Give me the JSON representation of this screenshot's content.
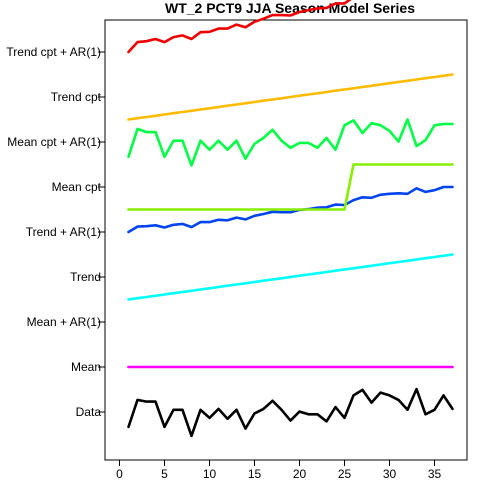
{
  "chart_data": {
    "type": "line",
    "title": "WT_2 PCT9 JJA Season Model Series",
    "xlabel": "",
    "ylabel": "",
    "xlim": [
      0,
      38
    ],
    "x_ticks": [
      0,
      5,
      10,
      15,
      20,
      25,
      30,
      35
    ],
    "y_categories": [
      "Data",
      "Mean",
      "Mean + AR(1)",
      "Trend",
      "Trend + AR(1)",
      "Mean cpt",
      "Mean cpt + AR(1)",
      "Trend cpt",
      "Trend cpt + AR(1)"
    ],
    "grid": false,
    "legend": "none",
    "x": [
      1,
      2,
      3,
      4,
      5,
      6,
      7,
      8,
      9,
      10,
      11,
      12,
      13,
      14,
      15,
      16,
      17,
      18,
      19,
      20,
      21,
      22,
      23,
      24,
      25,
      26,
      27,
      28,
      29,
      30,
      31,
      32,
      33,
      34,
      35,
      36,
      37
    ],
    "series": [
      {
        "name": "Data",
        "color": "#000000",
        "values": [
          -0.33,
          0.27,
          0.23,
          0.23,
          -0.33,
          0.05,
          0.05,
          -0.53,
          0.05,
          -0.13,
          0.07,
          -0.15,
          0.05,
          -0.37,
          -0.03,
          0.07,
          0.25,
          0.05,
          -0.19,
          0.01,
          -0.05,
          -0.05,
          -0.21,
          0.11,
          -0.13,
          0.37,
          0.49,
          0.21,
          0.43,
          0.37,
          0.27,
          0.05,
          0.51,
          -0.05,
          0.05,
          0.37,
          0.07
        ]
      },
      {
        "name": "Mean",
        "color": "#ff00ff",
        "values": [
          0,
          0,
          0,
          0,
          0,
          0,
          0,
          0,
          0,
          0,
          0,
          0,
          0,
          0,
          0,
          0,
          0,
          0,
          0,
          0,
          0,
          0,
          0,
          0,
          0,
          0,
          0,
          0,
          0,
          0,
          0,
          0,
          0,
          0,
          0,
          0,
          0
        ]
      },
      {
        "name": "Trend",
        "color": "#00ffff",
        "values": [
          -0.5,
          -0.4722,
          -0.4444,
          -0.4167,
          -0.3889,
          -0.3611,
          -0.3333,
          -0.3056,
          -0.2778,
          -0.25,
          -0.2222,
          -0.1944,
          -0.1667,
          -0.1389,
          -0.1111,
          -0.0833,
          -0.0556,
          -0.0278,
          0,
          0.0278,
          0.0556,
          0.0833,
          0.1111,
          0.1389,
          0.1667,
          0.1944,
          0.2222,
          0.25,
          0.2778,
          0.3056,
          0.3333,
          0.3611,
          0.3889,
          0.4167,
          0.4444,
          0.4722,
          0.5
        ]
      },
      {
        "name": "Trend + AR(1)",
        "color": "#0044ee",
        "values": [
          0.0,
          0.12,
          0.13,
          0.15,
          0.1,
          0.16,
          0.18,
          0.11,
          0.22,
          0.22,
          0.27,
          0.26,
          0.32,
          0.28,
          0.36,
          0.4,
          0.45,
          0.44,
          0.44,
          0.49,
          0.51,
          0.54,
          0.55,
          0.61,
          0.6,
          0.71,
          0.77,
          0.76,
          0.83,
          0.85,
          0.86,
          0.85,
          0.97,
          0.89,
          0.93,
          1.0,
          1.0
        ]
      },
      {
        "name": "Mean cpt",
        "color": "#88ee00",
        "values": [
          -0.5,
          -0.5,
          -0.5,
          -0.5,
          -0.5,
          -0.5,
          -0.5,
          -0.5,
          -0.5,
          -0.5,
          -0.5,
          -0.5,
          -0.5,
          -0.5,
          -0.5,
          -0.5,
          -0.5,
          -0.5,
          -0.5,
          -0.5,
          -0.5,
          -0.5,
          -0.5,
          -0.5,
          -0.5,
          0.5,
          0.5,
          0.5,
          0.5,
          0.5,
          0.5,
          0.5,
          0.5,
          0.5,
          0.5,
          0.5,
          0.5
        ]
      },
      {
        "name": "Mean cpt + AR(1)",
        "color": "#00ff44",
        "values": [
          -0.33,
          0.29,
          0.22,
          0.22,
          -0.33,
          0.03,
          0.03,
          -0.52,
          0.03,
          -0.17,
          0.03,
          -0.17,
          0.03,
          -0.37,
          -0.04,
          0.09,
          0.27,
          0.03,
          -0.13,
          -0.02,
          -0.02,
          -0.13,
          0.09,
          -0.17,
          0.37,
          0.48,
          0.2,
          0.42,
          0.37,
          0.25,
          0.01,
          0.5,
          -0.09,
          0.04,
          0.37,
          0.4,
          0.4
        ]
      },
      {
        "name": "Trend cpt",
        "color": "#ffbb00",
        "values": [
          -0.5,
          -0.4722,
          -0.4444,
          -0.4167,
          -0.3889,
          -0.3611,
          -0.3333,
          -0.3056,
          -0.2778,
          -0.25,
          -0.2222,
          -0.1944,
          -0.1667,
          -0.1389,
          -0.1111,
          -0.0833,
          -0.0556,
          -0.0278,
          0,
          0.0278,
          0.0556,
          0.0833,
          0.1111,
          0.1389,
          0.1667,
          0.1944,
          0.2222,
          0.25,
          0.2778,
          0.3056,
          0.3333,
          0.3611,
          0.3889,
          0.4167,
          0.4444,
          0.4722,
          0.5
        ]
      },
      {
        "name": "Trend cpt + AR(1)",
        "color": "#ee0000",
        "values": [
          0.0,
          0.22,
          0.24,
          0.29,
          0.22,
          0.33,
          0.37,
          0.29,
          0.44,
          0.45,
          0.52,
          0.52,
          0.61,
          0.55,
          0.67,
          0.74,
          0.82,
          0.82,
          0.81,
          0.89,
          0.93,
          0.97,
          0.98,
          1.08,
          1.08,
          1.22,
          1.31,
          1.3,
          1.39,
          1.41,
          1.43,
          1.42,
          1.58,
          1.49,
          1.55,
          1.66,
          1.66
        ]
      }
    ]
  },
  "colors": {
    "background": "#ffffff",
    "axis": "#000000"
  }
}
